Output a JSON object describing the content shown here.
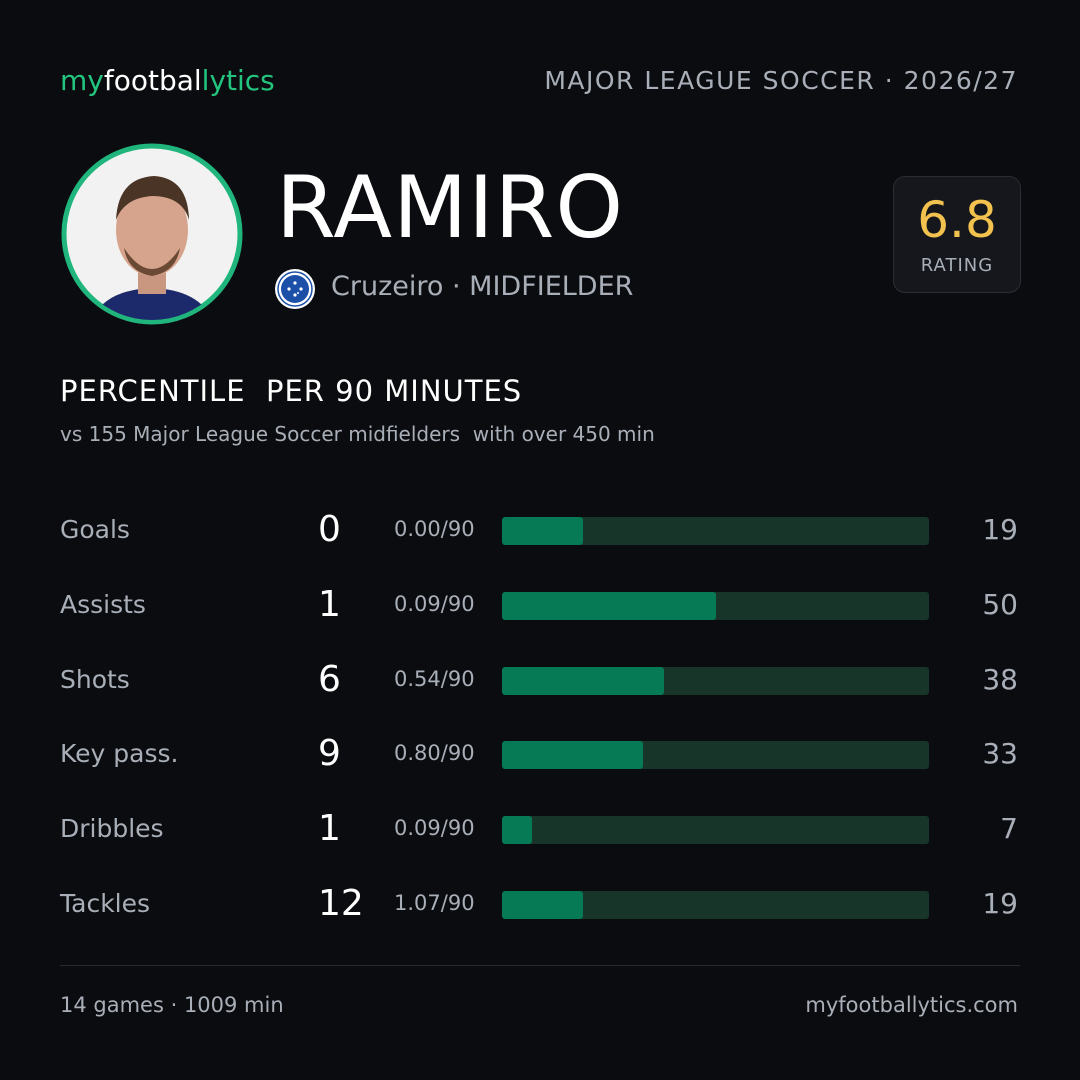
{
  "header": {
    "logo": [
      "my",
      "footbal",
      "lytics"
    ],
    "league": "MAJOR LEAGUE SOCCER · 2026/27"
  },
  "player": {
    "name": "RAMIRO",
    "club": "Cruzeiro",
    "position": "· MIDFIELDER",
    "rating": "6.8",
    "rating_label": "RATING"
  },
  "section": {
    "title": "PERCENTILE  PER 90 MINUTES",
    "subtitle": "vs 155 Major League Soccer midfielders  with over 450 min"
  },
  "chart_data": {
    "type": "bar",
    "categories": [
      "Goals",
      "Assists",
      "Shots",
      "Key pass.",
      "Dribbles",
      "Tackles"
    ],
    "counts": [
      0,
      1,
      6,
      9,
      1,
      12
    ],
    "per90": [
      "0.00/90",
      "0.09/90",
      "0.54/90",
      "0.80/90",
      "0.09/90",
      "1.07/90"
    ],
    "values": [
      19,
      50,
      38,
      33,
      7,
      19
    ],
    "xlim": [
      0,
      100
    ],
    "color": "#067a54",
    "track_color": "#173528"
  },
  "footer": {
    "left": "14 games · 1009 min",
    "right": "myfootballytics.com"
  }
}
